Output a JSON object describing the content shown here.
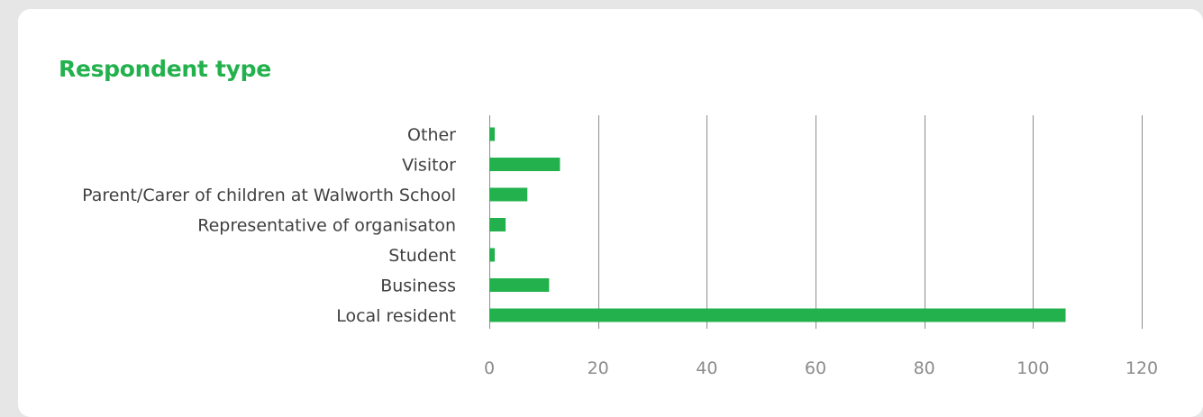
{
  "chart_data": {
    "type": "bar",
    "orientation": "horizontal",
    "title": "Respondent type",
    "categories": [
      "Other",
      "Visitor",
      "Parent/Carer of children at Walworth School",
      "Representative of organisaton",
      "Student",
      "Business",
      "Local resident"
    ],
    "values": [
      1,
      13,
      7,
      3,
      1,
      11,
      106
    ],
    "xlim": [
      0,
      120
    ],
    "x_ticks": [
      0,
      20,
      40,
      60,
      80,
      100,
      120
    ],
    "grid": "vertical",
    "bar_color": "#22b14c",
    "xlabel": "",
    "ylabel": ""
  }
}
